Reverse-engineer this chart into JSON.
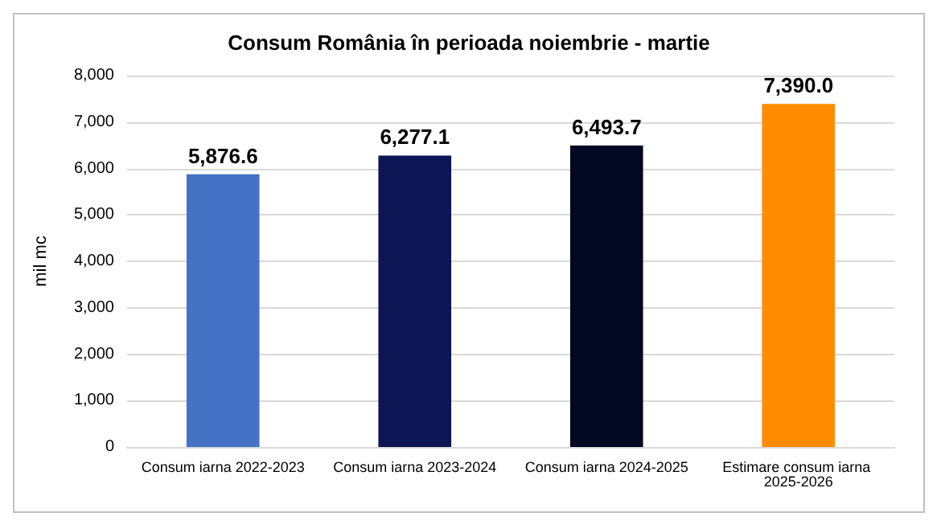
{
  "chart_data": {
    "type": "bar",
    "title": "Consum România în perioada noiembrie - martie",
    "ylabel": "mil mc",
    "categories": [
      "Consum iarna 2022-2023",
      "Consum iarna 2023-2024",
      "Consum iarna 2024-2025",
      "Estimare consum iarna 2025-2026"
    ],
    "values": [
      5876.6,
      6277.1,
      6493.7,
      7390.0
    ],
    "colors": [
      "#4472c4",
      "#0c1654",
      "#020722",
      "#ff8c00"
    ],
    "value_labels": [
      "5,876.6",
      "6,277.1",
      "6,493.7",
      "7,390.0"
    ],
    "ylim": [
      0,
      8000
    ],
    "yticks": [
      {
        "value": 0,
        "label": "0"
      },
      {
        "value": 1000,
        "label": "1,000"
      },
      {
        "value": 2000,
        "label": "2,000"
      },
      {
        "value": 3000,
        "label": "3,000"
      },
      {
        "value": 4000,
        "label": "4,000"
      },
      {
        "value": 5000,
        "label": "5,000"
      },
      {
        "value": 6000,
        "label": "6,000"
      },
      {
        "value": 7000,
        "label": "7,000"
      },
      {
        "value": 8000,
        "label": "8,000"
      }
    ],
    "grid": "y"
  }
}
